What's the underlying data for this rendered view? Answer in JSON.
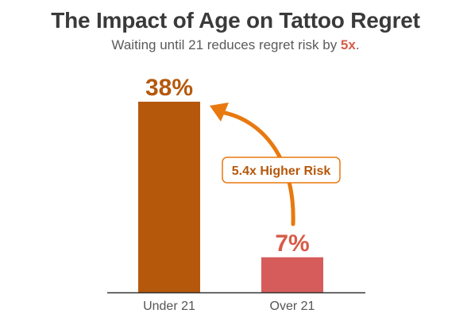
{
  "header": {
    "title": "The Impact of Age on Tattoo Regret",
    "subtitle_pre": "Waiting until 21 reduces regret risk by ",
    "subtitle_highlight": "5x",
    "subtitle_post": "."
  },
  "annotation": {
    "label": "5.4x Higher Risk"
  },
  "colors": {
    "bar_under": "#b5580c",
    "bar_over": "#d65c5c",
    "label_under": "#b5580c",
    "label_over": "#d65c48",
    "arrow": "#e8790f",
    "axis": "#333333",
    "tick_text": "#555555"
  },
  "chart_data": {
    "type": "bar",
    "categories": [
      "Under 21",
      "Over 21"
    ],
    "values": [
      38,
      7
    ],
    "value_labels": [
      "38%",
      "7%"
    ],
    "title": "The Impact of Age on Tattoo Regret",
    "xlabel": "",
    "ylabel": "",
    "ylim": [
      0,
      38
    ],
    "grid": false,
    "legend": "none"
  }
}
